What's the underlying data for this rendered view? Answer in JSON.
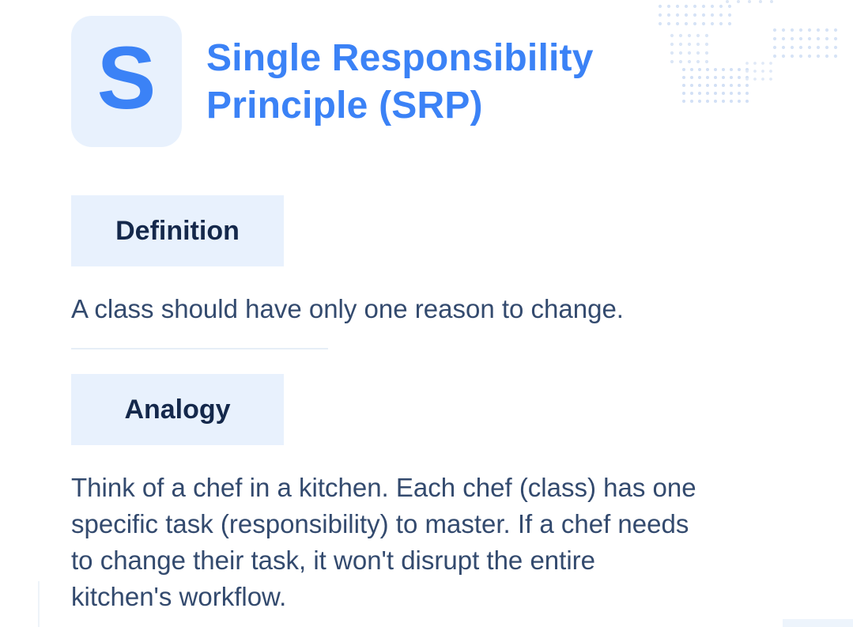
{
  "principle": {
    "letter": "S",
    "title_line1": "Single Responsibility",
    "title_line2": "Principle (SRP)"
  },
  "definition": {
    "label": "Definition",
    "text": "A class should have only one reason to change."
  },
  "analogy": {
    "label": "Analogy",
    "line1": "Think of a chef in a kitchen. Each chef (class) has one",
    "line2": "specific task (responsibility) to master. If a chef needs",
    "line3": "to change their task, it won't disrupt the entire",
    "line4": "kitchen's workflow."
  },
  "colors": {
    "accent": "#3b82f6",
    "tile_background": "#e8f1fd",
    "heading_text": "#14284b",
    "body_text": "#334a6e"
  }
}
